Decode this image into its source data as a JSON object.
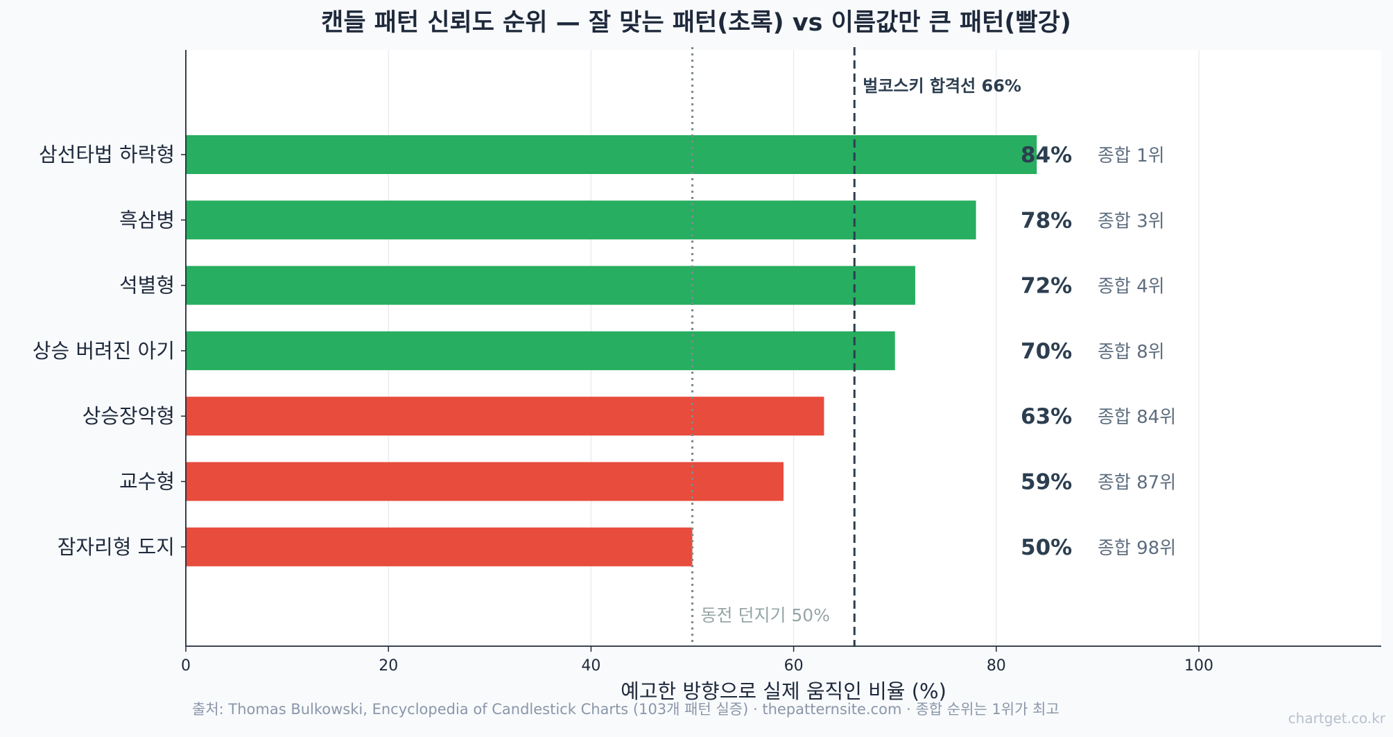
{
  "chart_data": {
    "type": "bar",
    "orientation": "horizontal",
    "title": "캔들 패턴 신뢰도 순위 — 잘 맞는 패턴(초록) vs 이름값만 큰 패턴(빨강)",
    "xlabel": "예고한 방향으로 실제 움직인 비율 (%)",
    "ylabel": "",
    "xlim": [
      0,
      118
    ],
    "xticks": [
      "0",
      "20",
      "40",
      "60",
      "80",
      "100"
    ],
    "grid": true,
    "categories": [
      "삼선타법 하락형",
      "흑삼병",
      "석별형",
      "상승 버려진 아기",
      "상승장악형",
      "교수형",
      "잠자리형 도지"
    ],
    "values": [
      84,
      78,
      72,
      70,
      63,
      59,
      50
    ],
    "value_labels": [
      "84%",
      "78%",
      "72%",
      "70%",
      "63%",
      "59%",
      "50%"
    ],
    "rank_labels": [
      "종합 1위",
      "종합 3위",
      "종합 4위",
      "종합 8위",
      "종합 84위",
      "종합 87위",
      "종합 98위"
    ],
    "bar_colors": [
      "#27ae60",
      "#27ae60",
      "#27ae60",
      "#27ae60",
      "#e74c3c",
      "#e74c3c",
      "#e74c3c"
    ],
    "reference_lines": [
      {
        "value": 66,
        "label": "벌코스키 합격선 66%",
        "style": "dashed",
        "color": "#2c3e50"
      },
      {
        "value": 50,
        "label": "동전 던지기 50%",
        "style": "dotted",
        "color": "#7f8c8d"
      }
    ]
  },
  "footer": {
    "source": "출처: Thomas Bulkowski, Encyclopedia of Candlestick Charts (103개 패턴 실증) · thepatternsite.com · 종합 순위는 1위가 최고",
    "watermark": "chartget.co.kr"
  },
  "colors": {
    "background": "#f8fafc",
    "plot_background": "#ffffff",
    "good": "#27ae60",
    "bad": "#e74c3c",
    "axis": "#1e293b"
  }
}
